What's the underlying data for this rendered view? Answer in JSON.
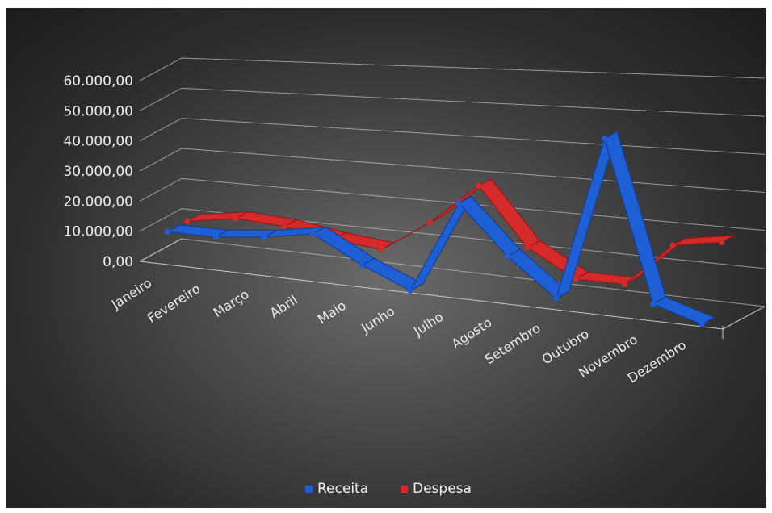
{
  "chart_data": {
    "type": "line",
    "categories": [
      "Janeiro",
      "Fevereiro",
      "Março",
      "Abril",
      "Maio",
      "Junho",
      "Julho",
      "Agosto",
      "Setembro",
      "Outubro",
      "Novembro",
      "Dezembro"
    ],
    "y_ticks": [
      "0,00",
      "10.000,00",
      "20.000,00",
      "30.000,00",
      "40.000,00",
      "50.000,00",
      "60.000,00"
    ],
    "ylim": [
      0,
      60000
    ],
    "series": [
      {
        "name": "Receita",
        "color": "#1f5fd6",
        "values": [
          10000,
          10000,
          11500,
          14000,
          6000,
          0,
          27000,
          13000,
          2500,
          48000,
          4000,
          0
        ]
      },
      {
        "name": "Despesa",
        "color": "#d42a2a",
        "values": [
          10000,
          12500,
          11500,
          9000,
          7500,
          17000,
          29000,
          12500,
          5000,
          5000,
          17000,
          19000
        ]
      }
    ],
    "legend_position": "bottom",
    "grid": true,
    "style": "3d-line"
  }
}
